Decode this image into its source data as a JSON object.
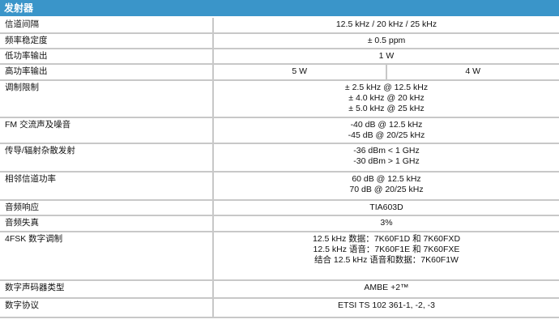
{
  "section_title": "发射器",
  "rows": [
    {
      "label": "信道间隔",
      "values": [
        "12.5 kHz / 20 kHz / 25 kHz"
      ]
    },
    {
      "label": "频率稳定度",
      "values": [
        "± 0.5 ppm"
      ]
    },
    {
      "label": "低功率输出",
      "values": [
        "1 W"
      ]
    },
    {
      "label": "高功率输出",
      "split": [
        "5 W",
        "4 W"
      ]
    },
    {
      "label": "调制限制",
      "values": [
        "± 2.5 kHz @ 12.5 kHz",
        "± 4.0 kHz @ 20 kHz",
        "± 5.0 kHz @ 25 kHz"
      ]
    },
    {
      "label": "FM 交流声及噪音",
      "values": [
        "-40 dB @ 12.5 kHz",
        "-45 dB @ 20/25 kHz"
      ]
    },
    {
      "label": "传导/辐射杂散发射",
      "values": [
        "-36 dBm < 1 GHz",
        "-30 dBm > 1 GHz"
      ]
    },
    {
      "label": "相邻信道功率",
      "values": [
        "60 dB @ 12.5 kHz",
        "70 dB @ 20/25 kHz"
      ]
    },
    {
      "label": "音频响应",
      "values": [
        "TIA603D"
      ]
    },
    {
      "label": "音频失真",
      "values": [
        "3%"
      ]
    },
    {
      "label": "4FSK 数字调制",
      "values": [
        "12.5 kHz 数据：7K60F1D 和 7K60FXD",
        "12.5 kHz 语音：7K60F1E 和 7K60FXE",
        "结合 12.5 kHz 语音和数据：7K60F1W"
      ]
    },
    {
      "label": "数字声码器类型",
      "values": [
        "AMBE +2™"
      ]
    },
    {
      "label": "数字协议",
      "values": [
        "ETSI TS 102 361-1, -2, -3"
      ]
    }
  ]
}
